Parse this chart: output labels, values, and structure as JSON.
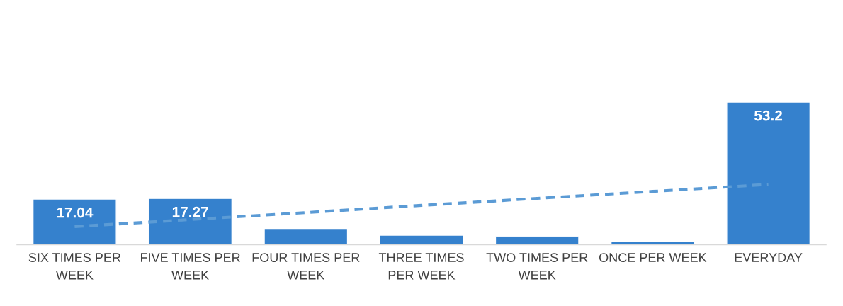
{
  "chart_data": {
    "type": "bar",
    "categories": [
      "SIX TIMES PER WEEK",
      "FIVE TIMES PER WEEK",
      "FOUR TIMES PER WEEK",
      "THREE TIMES PER WEEK",
      "TWO TIMES PER WEEK",
      "ONCE PER WEEK",
      "EVERYDAY"
    ],
    "series": [
      {
        "color": "#3581cd",
        "values": [
          17.04,
          17.27,
          5.8,
          3.6,
          3.1,
          1.4,
          53.2
        ],
        "value_labels": [
          "17.04",
          "17.27",
          null,
          null,
          null,
          null,
          "53.2"
        ]
      },
      {
        "type": "line",
        "color": "#5b9bd5",
        "line_style": "dashed",
        "values": [
          6.8,
          9.4,
          12.0,
          14.7,
          17.3,
          19.9,
          22.5
        ]
      }
    ],
    "grid": false,
    "legend": false
  }
}
